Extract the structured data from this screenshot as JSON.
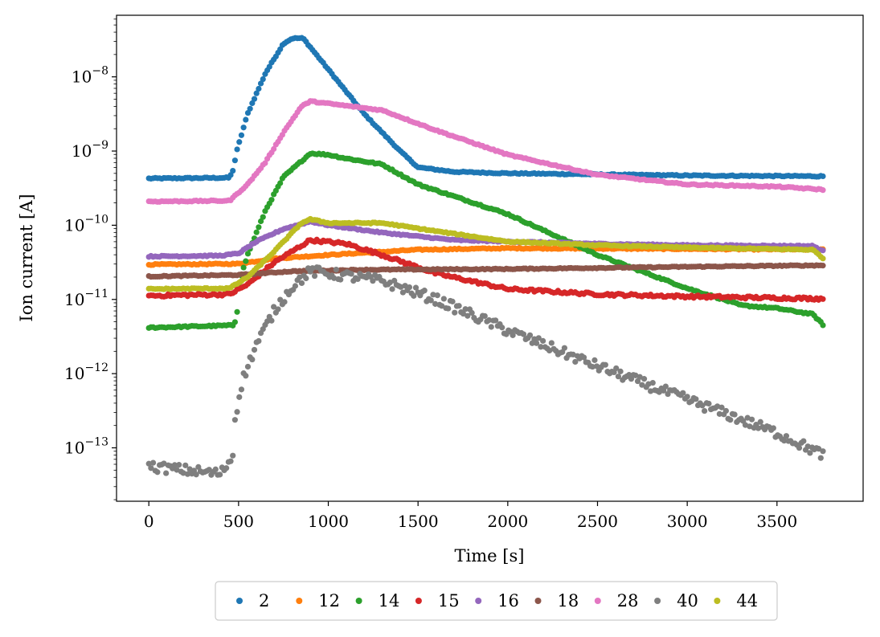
{
  "chart_data": {
    "type": "scatter",
    "xlabel": "Time [s]",
    "ylabel": "Ion current [A]",
    "yscale": "log",
    "xlim": [
      -180,
      3980
    ],
    "ylim_log10": [
      -13.72,
      -7.17
    ],
    "xticks": [
      {
        "value": 0,
        "label": "0"
      },
      {
        "value": 500,
        "label": "500"
      },
      {
        "value": 1000,
        "label": "1000"
      },
      {
        "value": 1500,
        "label": "1500"
      },
      {
        "value": 2000,
        "label": "2000"
      },
      {
        "value": 2500,
        "label": "2500"
      },
      {
        "value": 3000,
        "label": "3000"
      },
      {
        "value": 3500,
        "label": "3500"
      }
    ],
    "yticks": [
      {
        "value": -8,
        "base": "10",
        "exp": "−8"
      },
      {
        "value": -9,
        "base": "10",
        "exp": "−9"
      },
      {
        "value": -10,
        "base": "10",
        "exp": "−10"
      },
      {
        "value": -11,
        "base": "10",
        "exp": "−11"
      },
      {
        "value": -12,
        "base": "10",
        "exp": "−12"
      },
      {
        "value": -13,
        "base": "10",
        "exp": "−13"
      }
    ],
    "legend_position": "bottom-center-outside",
    "series": [
      {
        "name": "2",
        "color": "#1f77b4",
        "noise": 0.008,
        "points": [
          [
            0,
            -9.37
          ],
          [
            450,
            -9.36
          ],
          [
            470,
            -9.25
          ],
          [
            490,
            -9.0
          ],
          [
            550,
            -8.5
          ],
          [
            650,
            -7.95
          ],
          [
            750,
            -7.55
          ],
          [
            800,
            -7.48
          ],
          [
            860,
            -7.48
          ],
          [
            1000,
            -7.9
          ],
          [
            1200,
            -8.5
          ],
          [
            1400,
            -9.0
          ],
          [
            1500,
            -9.22
          ],
          [
            1700,
            -9.28
          ],
          [
            2000,
            -9.3
          ],
          [
            3000,
            -9.33
          ],
          [
            3760,
            -9.34
          ]
        ]
      },
      {
        "name": "12",
        "color": "#ff7f0e",
        "noise": 0.008,
        "points": [
          [
            0,
            -10.53
          ],
          [
            500,
            -10.52
          ],
          [
            700,
            -10.45
          ],
          [
            1000,
            -10.4
          ],
          [
            1500,
            -10.33
          ],
          [
            2000,
            -10.31
          ],
          [
            3000,
            -10.32
          ],
          [
            3760,
            -10.33
          ]
        ]
      },
      {
        "name": "14",
        "color": "#2ca02c",
        "noise": 0.01,
        "points": [
          [
            0,
            -11.38
          ],
          [
            470,
            -11.35
          ],
          [
            490,
            -11.25
          ],
          [
            500,
            -10.8
          ],
          [
            550,
            -10.4
          ],
          [
            650,
            -9.8
          ],
          [
            750,
            -9.35
          ],
          [
            900,
            -9.03
          ],
          [
            1000,
            -9.05
          ],
          [
            1100,
            -9.1
          ],
          [
            1300,
            -9.18
          ],
          [
            1500,
            -9.45
          ],
          [
            2000,
            -9.85
          ],
          [
            2500,
            -10.4
          ],
          [
            3000,
            -10.85
          ],
          [
            3200,
            -11.0
          ],
          [
            3300,
            -11.08
          ],
          [
            3500,
            -11.12
          ],
          [
            3700,
            -11.2
          ],
          [
            3760,
            -11.35
          ]
        ]
      },
      {
        "name": "15",
        "color": "#d62728",
        "noise": 0.018,
        "points": [
          [
            0,
            -10.95
          ],
          [
            450,
            -10.93
          ],
          [
            550,
            -10.8
          ],
          [
            700,
            -10.5
          ],
          [
            900,
            -10.2
          ],
          [
            1100,
            -10.25
          ],
          [
            1300,
            -10.4
          ],
          [
            1600,
            -10.65
          ],
          [
            2000,
            -10.86
          ],
          [
            2500,
            -10.93
          ],
          [
            3000,
            -10.96
          ],
          [
            3250,
            -10.97
          ],
          [
            3500,
            -10.98
          ],
          [
            3760,
            -10.99
          ]
        ]
      },
      {
        "name": "16",
        "color": "#9467bd",
        "noise": 0.008,
        "points": [
          [
            0,
            -10.42
          ],
          [
            400,
            -10.41
          ],
          [
            500,
            -10.38
          ],
          [
            600,
            -10.22
          ],
          [
            750,
            -10.05
          ],
          [
            900,
            -9.95
          ],
          [
            1000,
            -10.0
          ],
          [
            1300,
            -10.1
          ],
          [
            1700,
            -10.2
          ],
          [
            2000,
            -10.22
          ],
          [
            2500,
            -10.25
          ],
          [
            3000,
            -10.27
          ],
          [
            3700,
            -10.28
          ],
          [
            3760,
            -10.35
          ]
        ]
      },
      {
        "name": "18",
        "color": "#8c564b",
        "noise": 0.007,
        "points": [
          [
            0,
            -10.69
          ],
          [
            500,
            -10.67
          ],
          [
            800,
            -10.62
          ],
          [
            1200,
            -10.6
          ],
          [
            2000,
            -10.59
          ],
          [
            3000,
            -10.56
          ],
          [
            3760,
            -10.54
          ]
        ]
      },
      {
        "name": "28",
        "color": "#e377c2",
        "noise": 0.008,
        "points": [
          [
            0,
            -9.68
          ],
          [
            450,
            -9.67
          ],
          [
            550,
            -9.45
          ],
          [
            650,
            -9.15
          ],
          [
            750,
            -8.75
          ],
          [
            850,
            -8.4
          ],
          [
            900,
            -8.33
          ],
          [
            1000,
            -8.36
          ],
          [
            1300,
            -8.45
          ],
          [
            1600,
            -8.72
          ],
          [
            2000,
            -9.05
          ],
          [
            2500,
            -9.32
          ],
          [
            3000,
            -9.45
          ],
          [
            3500,
            -9.48
          ],
          [
            3760,
            -9.52
          ]
        ]
      },
      {
        "name": "40",
        "color": "#7f7f7f",
        "noise": 0.07,
        "points": [
          [
            0,
            -13.25
          ],
          [
            400,
            -13.35
          ],
          [
            470,
            -13.1
          ],
          [
            480,
            -12.6
          ],
          [
            520,
            -12.1
          ],
          [
            600,
            -11.6
          ],
          [
            700,
            -11.15
          ],
          [
            800,
            -10.82
          ],
          [
            900,
            -10.62
          ],
          [
            1000,
            -10.65
          ],
          [
            1300,
            -10.75
          ],
          [
            1600,
            -11.0
          ],
          [
            2000,
            -11.42
          ],
          [
            2500,
            -11.9
          ],
          [
            3000,
            -12.35
          ],
          [
            3500,
            -12.8
          ],
          [
            3760,
            -13.1
          ]
        ]
      },
      {
        "name": "44",
        "color": "#bcbd22",
        "noise": 0.008,
        "points": [
          [
            0,
            -10.86
          ],
          [
            450,
            -10.85
          ],
          [
            550,
            -10.7
          ],
          [
            700,
            -10.35
          ],
          [
            850,
            -9.97
          ],
          [
            900,
            -9.92
          ],
          [
            1000,
            -9.97
          ],
          [
            1300,
            -9.97
          ],
          [
            1600,
            -10.08
          ],
          [
            2000,
            -10.22
          ],
          [
            2500,
            -10.27
          ],
          [
            3000,
            -10.3
          ],
          [
            3700,
            -10.33
          ],
          [
            3760,
            -10.45
          ]
        ]
      }
    ]
  }
}
